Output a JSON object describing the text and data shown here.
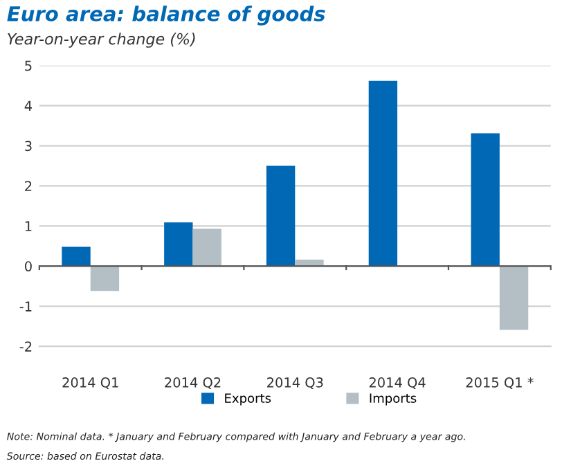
{
  "chart_data": {
    "type": "bar",
    "title": "Euro area: balance of goods",
    "subtitle": "Year-on-year change (%)",
    "categories": [
      "2014 Q1",
      "2014 Q2",
      "2014 Q3",
      "2014 Q4",
      "2015 Q1 *"
    ],
    "series": [
      {
        "name": "Exports",
        "color": "#0068b4",
        "values": [
          0.48,
          1.09,
          2.5,
          4.62,
          3.31
        ]
      },
      {
        "name": "Imports",
        "color": "#b3bfc5",
        "values": [
          -0.62,
          0.93,
          0.16,
          0,
          -1.59
        ]
      }
    ],
    "ylim": [
      -2,
      5
    ],
    "yticks": [
      -2,
      -1,
      0,
      1,
      2,
      3,
      4,
      5
    ],
    "grid": "y",
    "legend": "bottom",
    "annotations": [
      "Note: Nominal data. * January and February compared with January and February a year ago.",
      "Source: based on Eurostat data."
    ]
  }
}
